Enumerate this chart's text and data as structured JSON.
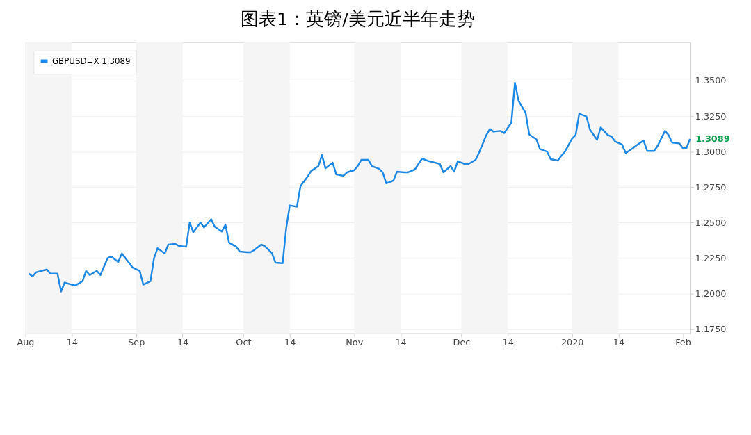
{
  "chart_data": {
    "type": "line",
    "title": "图表1：英镑/美元近半年走势",
    "x": [
      "2019-08-02",
      "2019-08-03",
      "2019-08-04",
      "2019-08-07",
      "2019-08-08",
      "2019-08-10",
      "2019-08-11",
      "2019-08-12",
      "2019-08-14",
      "2019-08-15",
      "2019-08-17",
      "2019-08-18",
      "2019-08-19",
      "2019-08-21",
      "2019-08-22",
      "2019-08-24",
      "2019-08-25",
      "2019-08-27",
      "2019-08-28",
      "2019-08-30",
      "2019-08-31",
      "2019-09-02",
      "2019-09-03",
      "2019-09-05",
      "2019-09-06",
      "2019-09-07",
      "2019-09-09",
      "2019-09-10",
      "2019-09-12",
      "2019-09-13",
      "2019-09-15",
      "2019-09-16",
      "2019-09-17",
      "2019-09-19",
      "2019-09-20",
      "2019-09-22",
      "2019-09-23",
      "2019-09-25",
      "2019-09-26",
      "2019-09-27",
      "2019-09-29",
      "2019-09-30",
      "2019-10-02",
      "2019-10-03",
      "2019-10-04",
      "2019-10-06",
      "2019-10-07",
      "2019-10-09",
      "2019-10-10",
      "2019-10-12",
      "2019-10-13",
      "2019-10-14",
      "2019-10-16",
      "2019-10-17",
      "2019-10-19",
      "2019-10-20",
      "2019-10-22",
      "2019-10-23",
      "2019-10-24",
      "2019-10-26",
      "2019-10-27",
      "2019-10-29",
      "2019-10-30",
      "2019-11-01",
      "2019-11-02",
      "2019-11-03",
      "2019-11-05",
      "2019-11-06",
      "2019-11-08",
      "2019-11-09",
      "2019-11-10",
      "2019-11-12",
      "2019-11-13",
      "2019-11-15",
      "2019-11-16",
      "2019-11-18",
      "2019-11-19",
      "2019-11-20",
      "2019-11-22",
      "2019-11-23",
      "2019-11-25",
      "2019-11-26",
      "2019-11-28",
      "2019-11-29",
      "2019-11-30",
      "2019-12-02",
      "2019-12-03",
      "2019-12-05",
      "2019-12-06",
      "2019-12-08",
      "2019-12-09",
      "2019-12-10",
      "2019-12-12",
      "2019-12-13",
      "2019-12-15",
      "2019-12-16",
      "2019-12-17",
      "2019-12-19",
      "2019-12-20",
      "2019-12-22",
      "2019-12-23",
      "2019-12-25",
      "2019-12-26",
      "2019-12-28",
      "2019-12-29",
      "2019-12-30",
      "2020-01-01",
      "2020-01-02",
      "2020-01-03",
      "2020-01-05",
      "2020-01-06",
      "2020-01-08",
      "2020-01-09",
      "2020-01-11",
      "2020-01-12",
      "2020-01-13",
      "2020-01-15",
      "2020-01-16",
      "2020-01-18",
      "2020-01-19",
      "2020-01-21",
      "2020-01-22",
      "2020-01-24",
      "2020-01-25",
      "2020-01-27",
      "2020-01-28",
      "2020-01-29",
      "2020-01-31",
      "2020-02-01",
      "2020-02-02",
      "2020-02-03"
    ],
    "series": [
      {
        "name": "GBPUSD=X 1.3089",
        "color": "#1e88e5",
        "values": [
          1.2141,
          1.2121,
          1.215,
          1.217,
          1.2141,
          1.2141,
          1.2015,
          1.2078,
          1.2063,
          1.2058,
          1.2087,
          1.216,
          1.2131,
          1.216,
          1.2131,
          1.2248,
          1.2262,
          1.2223,
          1.2282,
          1.2218,
          1.2184,
          1.216,
          1.2063,
          1.2087,
          1.2248,
          1.232,
          1.2282,
          1.2345,
          1.235,
          1.2335,
          1.233,
          1.25,
          1.2432,
          1.25,
          1.2466,
          1.2524,
          1.2471,
          1.2437,
          1.2485,
          1.2359,
          1.233,
          1.2296,
          1.2291,
          1.2291,
          1.2306,
          1.2345,
          1.2335,
          1.2286,
          1.2218,
          1.2214,
          1.2461,
          1.2621,
          1.2612,
          1.2757,
          1.2825,
          1.2864,
          1.2898,
          1.2976,
          1.2883,
          1.2922,
          1.284,
          1.283,
          1.2854,
          1.2869,
          1.2898,
          1.2942,
          1.2942,
          1.2898,
          1.2879,
          1.2854,
          1.2777,
          1.2796,
          1.2859,
          1.2854,
          1.2854,
          1.2874,
          1.2913,
          1.2951,
          1.2932,
          1.2927,
          1.2913,
          1.2854,
          1.2898,
          1.2859,
          1.2932,
          1.2913,
          1.2913,
          1.2942,
          1.2995,
          1.3117,
          1.316,
          1.3141,
          1.3146,
          1.3131,
          1.3204,
          1.3485,
          1.3359,
          1.3272,
          1.3121,
          1.3087,
          1.3019,
          1.3,
          1.2947,
          1.2937,
          1.2971,
          1.3,
          1.3092,
          1.3117,
          1.3267,
          1.3248,
          1.3155,
          1.3083,
          1.317,
          1.3117,
          1.3107,
          1.3073,
          1.3049,
          1.299,
          1.3024,
          1.3044,
          1.3078,
          1.3005,
          1.3005,
          1.3044,
          1.3146,
          1.3117,
          1.3063,
          1.3058,
          1.3024,
          1.3024,
          1.3089
        ]
      }
    ],
    "xlim": [
      "2019-08-01",
      "2020-02-03"
    ],
    "xticks": [
      {
        "value": "2019-08-01",
        "label": "Aug"
      },
      {
        "value": "2019-08-14",
        "label": "14"
      },
      {
        "value": "2019-09-01",
        "label": "Sep"
      },
      {
        "value": "2019-09-14",
        "label": "14"
      },
      {
        "value": "2019-10-01",
        "label": "Oct"
      },
      {
        "value": "2019-10-14",
        "label": "14"
      },
      {
        "value": "2019-11-01",
        "label": "Nov"
      },
      {
        "value": "2019-11-14",
        "label": "14"
      },
      {
        "value": "2019-12-01",
        "label": "Dec"
      },
      {
        "value": "2019-12-14",
        "label": "14"
      },
      {
        "value": "2020-01-01",
        "label": "2020"
      },
      {
        "value": "2020-01-14",
        "label": "14"
      },
      {
        "value": "2020-02-01",
        "label": "Feb"
      }
    ],
    "ylim": [
      1.172,
      1.377
    ],
    "yticks": [
      {
        "value": 1.175,
        "label": "1.1750"
      },
      {
        "value": 1.2,
        "label": "1.2000"
      },
      {
        "value": 1.225,
        "label": "1.2250"
      },
      {
        "value": 1.25,
        "label": "1.2500"
      },
      {
        "value": 1.275,
        "label": "1.2750"
      },
      {
        "value": 1.3,
        "label": "1.3000"
      },
      {
        "value": 1.325,
        "label": "1.3250"
      },
      {
        "value": 1.35,
        "label": "1.3500"
      }
    ],
    "bands": [
      {
        "axis": "x",
        "from": "2019-08-01",
        "to": "2019-08-14",
        "color": "#f5f5f5"
      },
      {
        "axis": "x",
        "from": "2019-09-01",
        "to": "2019-09-14",
        "color": "#f5f5f5"
      },
      {
        "axis": "x",
        "from": "2019-10-01",
        "to": "2019-10-14",
        "color": "#f5f5f5"
      },
      {
        "axis": "x",
        "from": "2019-11-01",
        "to": "2019-11-14",
        "color": "#f5f5f5"
      },
      {
        "axis": "x",
        "from": "2019-12-01",
        "to": "2019-12-14",
        "color": "#f5f5f5"
      },
      {
        "axis": "x",
        "from": "2020-01-01",
        "to": "2020-01-14",
        "color": "#f5f5f5"
      }
    ],
    "annotations": [
      {
        "text": "1.3089",
        "x": "2020-02-03",
        "y": 1.3089
      }
    ],
    "grid": "y",
    "legend": "top left",
    "marker": "none",
    "line_style": "solid"
  }
}
